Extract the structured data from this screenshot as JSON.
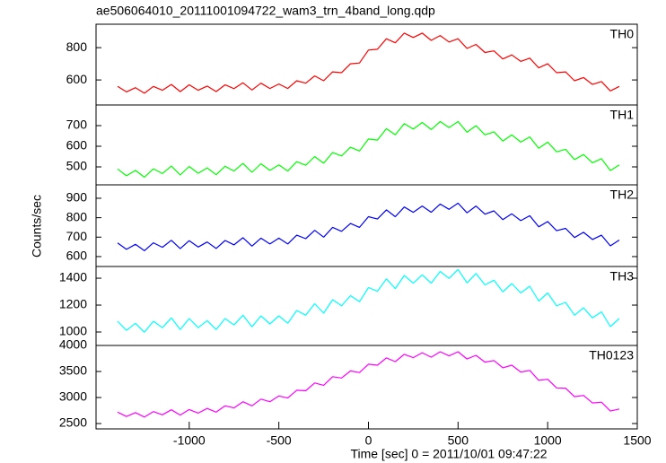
{
  "chart_data": [
    {
      "type": "line",
      "title": "ae506064010_20111001094722_wam3_trn_4band_long.qdp",
      "xlim": [
        -1520,
        1500
      ],
      "ylim": [
        445,
        945
      ],
      "yticks": [
        600,
        800
      ],
      "x": [
        -1400,
        -1350,
        -1300,
        -1250,
        -1200,
        -1150,
        -1100,
        -1050,
        -1000,
        -950,
        -900,
        -850,
        -800,
        -750,
        -700,
        -650,
        -600,
        -550,
        -500,
        -450,
        -400,
        -350,
        -300,
        -250,
        -200,
        -150,
        -100,
        -50,
        0,
        50,
        100,
        150,
        200,
        250,
        300,
        350,
        400,
        450,
        500,
        550,
        600,
        650,
        700,
        750,
        800,
        850,
        900,
        950,
        1000,
        1050,
        1100,
        1150,
        1200,
        1250,
        1300,
        1350,
        1400
      ],
      "series": [
        {
          "name": "TH0",
          "color": "#ff0000",
          "values": [
            560,
            526,
            552,
            518,
            560,
            536,
            572,
            528,
            570,
            536,
            562,
            528,
            570,
            546,
            582,
            538,
            580,
            547,
            575,
            547,
            595,
            580,
            625,
            595,
            650,
            645,
            700,
            705,
            785,
            790,
            855,
            830,
            890,
            863,
            890,
            845,
            875,
            835,
            855,
            795,
            820,
            770,
            780,
            730,
            755,
            715,
            735,
            675,
            700,
            645,
            650,
            595,
            615,
            572,
            590,
            532,
            560
          ]
        }
      ]
    },
    {
      "type": "line",
      "xlim": [
        -1520,
        1500
      ],
      "ylim": [
        413,
        800
      ],
      "yticks": [
        500,
        600,
        700
      ],
      "x": [
        -1400,
        -1350,
        -1300,
        -1250,
        -1200,
        -1150,
        -1100,
        -1050,
        -1000,
        -950,
        -900,
        -850,
        -800,
        -750,
        -700,
        -650,
        -600,
        -550,
        -500,
        -450,
        -400,
        -350,
        -300,
        -250,
        -200,
        -150,
        -100,
        -50,
        0,
        50,
        100,
        150,
        200,
        250,
        300,
        350,
        400,
        450,
        500,
        550,
        600,
        650,
        700,
        750,
        800,
        850,
        900,
        950,
        1000,
        1050,
        1100,
        1150,
        1200,
        1250,
        1300,
        1350,
        1400
      ],
      "series": [
        {
          "name": "TH1",
          "color": "#00ff00",
          "values": [
            490,
            457,
            483,
            450,
            491,
            468,
            504,
            461,
            502,
            469,
            495,
            462,
            503,
            480,
            517,
            474,
            515,
            483,
            510,
            480,
            525,
            508,
            550,
            518,
            570,
            553,
            595,
            577,
            635,
            630,
            685,
            655,
            710,
            683,
            715,
            681,
            720,
            690,
            720,
            668,
            700,
            655,
            670,
            625,
            655,
            620,
            645,
            590,
            620,
            573,
            585,
            535,
            560,
            520,
            540,
            482,
            510
          ]
        }
      ]
    },
    {
      "type": "line",
      "ylabel": "Counts/sec",
      "xlim": [
        -1520,
        1500
      ],
      "ylim": [
        549,
        969
      ],
      "yticks": [
        600,
        700,
        800,
        900
      ],
      "x": [
        -1400,
        -1350,
        -1300,
        -1250,
        -1200,
        -1150,
        -1100,
        -1050,
        -1000,
        -950,
        -900,
        -850,
        -800,
        -750,
        -700,
        -650,
        -600,
        -550,
        -500,
        -450,
        -400,
        -350,
        -300,
        -250,
        -200,
        -150,
        -100,
        -50,
        0,
        50,
        100,
        150,
        200,
        250,
        300,
        350,
        400,
        450,
        500,
        550,
        600,
        650,
        700,
        750,
        800,
        850,
        900,
        950,
        1000,
        1050,
        1100,
        1150,
        1200,
        1250,
        1300,
        1350,
        1400
      ],
      "series": [
        {
          "name": "TH2",
          "color": "#0000ff",
          "values": [
            670,
            637,
            663,
            630,
            671,
            648,
            684,
            641,
            682,
            649,
            675,
            642,
            683,
            660,
            697,
            654,
            695,
            665,
            695,
            665,
            710,
            692,
            735,
            700,
            750,
            730,
            770,
            750,
            805,
            793,
            840,
            805,
            855,
            828,
            860,
            828,
            870,
            843,
            875,
            825,
            860,
            818,
            835,
            790,
            820,
            785,
            810,
            753,
            780,
            733,
            745,
            698,
            725,
            688,
            710,
            655,
            685
          ]
        }
      ]
    },
    {
      "type": "line",
      "xlim": [
        -1520,
        1500
      ],
      "ylim": [
        900,
        1487
      ],
      "yticks": [
        1000,
        1200,
        1400
      ],
      "x": [
        -1400,
        -1350,
        -1300,
        -1250,
        -1200,
        -1150,
        -1100,
        -1050,
        -1000,
        -950,
        -900,
        -850,
        -800,
        -750,
        -700,
        -650,
        -600,
        -550,
        -500,
        -450,
        -400,
        -350,
        -300,
        -250,
        -200,
        -150,
        -100,
        -50,
        0,
        50,
        100,
        150,
        200,
        250,
        300,
        350,
        400,
        450,
        500,
        550,
        600,
        650,
        700,
        750,
        800,
        850,
        900,
        950,
        1000,
        1050,
        1100,
        1150,
        1200,
        1250,
        1300,
        1350,
        1400
      ],
      "series": [
        {
          "name": "TH3",
          "color": "#00ffff",
          "values": [
            1080,
            1012,
            1065,
            998,
            1080,
            1032,
            1105,
            1018,
            1100,
            1032,
            1085,
            1018,
            1100,
            1052,
            1125,
            1038,
            1120,
            1060,
            1120,
            1065,
            1160,
            1125,
            1210,
            1140,
            1240,
            1195,
            1270,
            1225,
            1330,
            1303,
            1395,
            1323,
            1420,
            1363,
            1425,
            1363,
            1450,
            1398,
            1465,
            1365,
            1435,
            1350,
            1385,
            1298,
            1360,
            1290,
            1340,
            1230,
            1290,
            1195,
            1220,
            1125,
            1180,
            1105,
            1150,
            1040,
            1100
          ]
        }
      ]
    },
    {
      "type": "line",
      "xlabel": "Time [sec] 0 = 2011/10/01 09:47:22",
      "xlim": [
        -1520,
        1500
      ],
      "xticks": [
        -1000,
        -500,
        0,
        500,
        1000,
        1500
      ],
      "ylim": [
        2397,
        4000
      ],
      "yticks": [
        2500,
        3000,
        3500,
        4000
      ],
      "x": [
        -1400,
        -1350,
        -1300,
        -1250,
        -1200,
        -1150,
        -1100,
        -1050,
        -1000,
        -950,
        -900,
        -850,
        -800,
        -750,
        -700,
        -650,
        -600,
        -550,
        -500,
        -450,
        -400,
        -350,
        -300,
        -250,
        -200,
        -150,
        -100,
        -50,
        0,
        50,
        100,
        150,
        200,
        250,
        300,
        350,
        400,
        450,
        500,
        550,
        600,
        650,
        700,
        750,
        800,
        850,
        900,
        950,
        1000,
        1050,
        1100,
        1150,
        1200,
        1250,
        1300,
        1350,
        1400
      ],
      "series": [
        {
          "name": "TH0123",
          "color": "#ff00ff",
          "values": [
            2720,
            2635,
            2710,
            2625,
            2730,
            2668,
            2765,
            2662,
            2770,
            2700,
            2790,
            2720,
            2840,
            2800,
            2920,
            2840,
            2970,
            2920,
            3030,
            2990,
            3140,
            3130,
            3280,
            3235,
            3400,
            3375,
            3510,
            3480,
            3640,
            3620,
            3760,
            3690,
            3830,
            3765,
            3860,
            3775,
            3880,
            3800,
            3880,
            3740,
            3810,
            3680,
            3710,
            3570,
            3620,
            3490,
            3520,
            3330,
            3350,
            3185,
            3180,
            3015,
            3040,
            2895,
            2910,
            2740,
            2780
          ]
        }
      ]
    }
  ]
}
